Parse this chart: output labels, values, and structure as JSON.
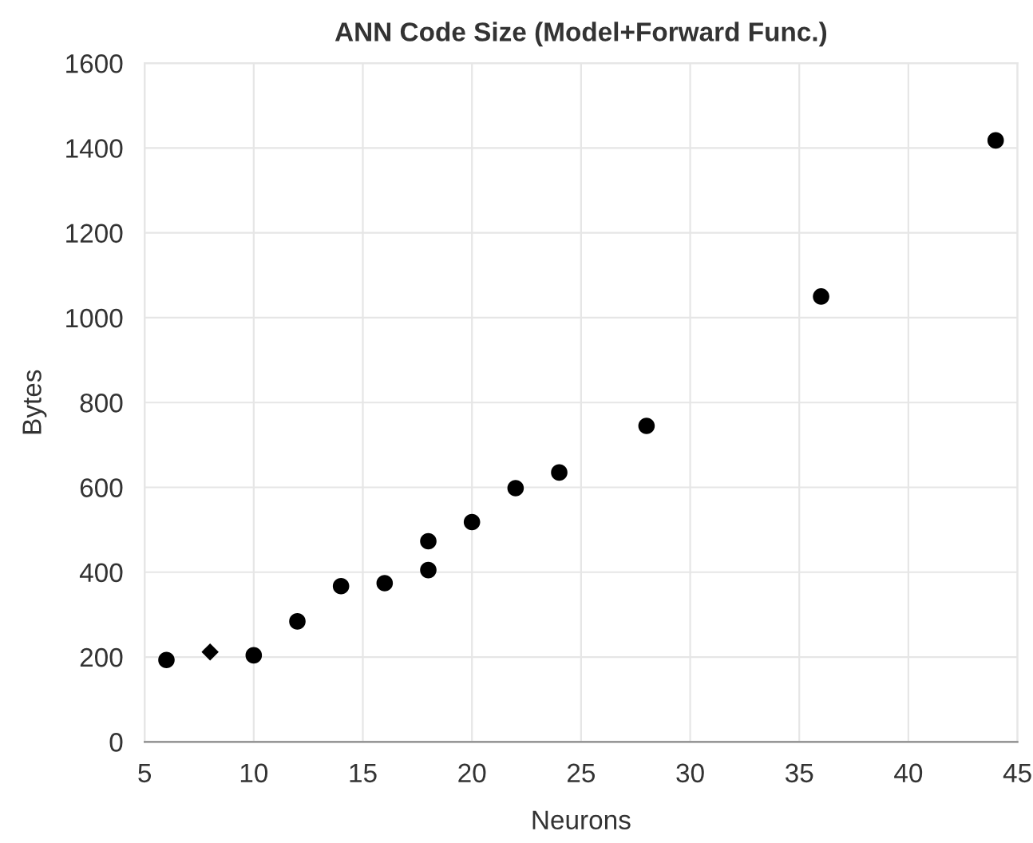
{
  "chart_data": {
    "type": "scatter",
    "title": "ANN Code Size (Model+Forward Func.)",
    "xlabel": "Neurons",
    "ylabel": "Bytes",
    "series": [
      {
        "color": "#000000",
        "marker": "circle",
        "x": [
          6,
          10,
          12,
          14,
          16,
          18,
          18,
          20,
          22,
          24,
          28,
          36,
          44
        ],
        "values": [
          193,
          204,
          284,
          367,
          374,
          473,
          405,
          518,
          598,
          635,
          745,
          1050,
          1418
        ]
      },
      {
        "color": "#000000",
        "marker": "diamond",
        "x": [
          8
        ],
        "values": [
          212
        ]
      }
    ],
    "xlim": [
      5,
      45
    ],
    "xticks": [
      5,
      10,
      15,
      20,
      25,
      30,
      35,
      40,
      45
    ],
    "ylim": [
      0,
      1600
    ],
    "yticks": [
      0,
      200,
      400,
      600,
      800,
      1000,
      1200,
      1400,
      1600
    ],
    "grid": true,
    "legend": false
  }
}
